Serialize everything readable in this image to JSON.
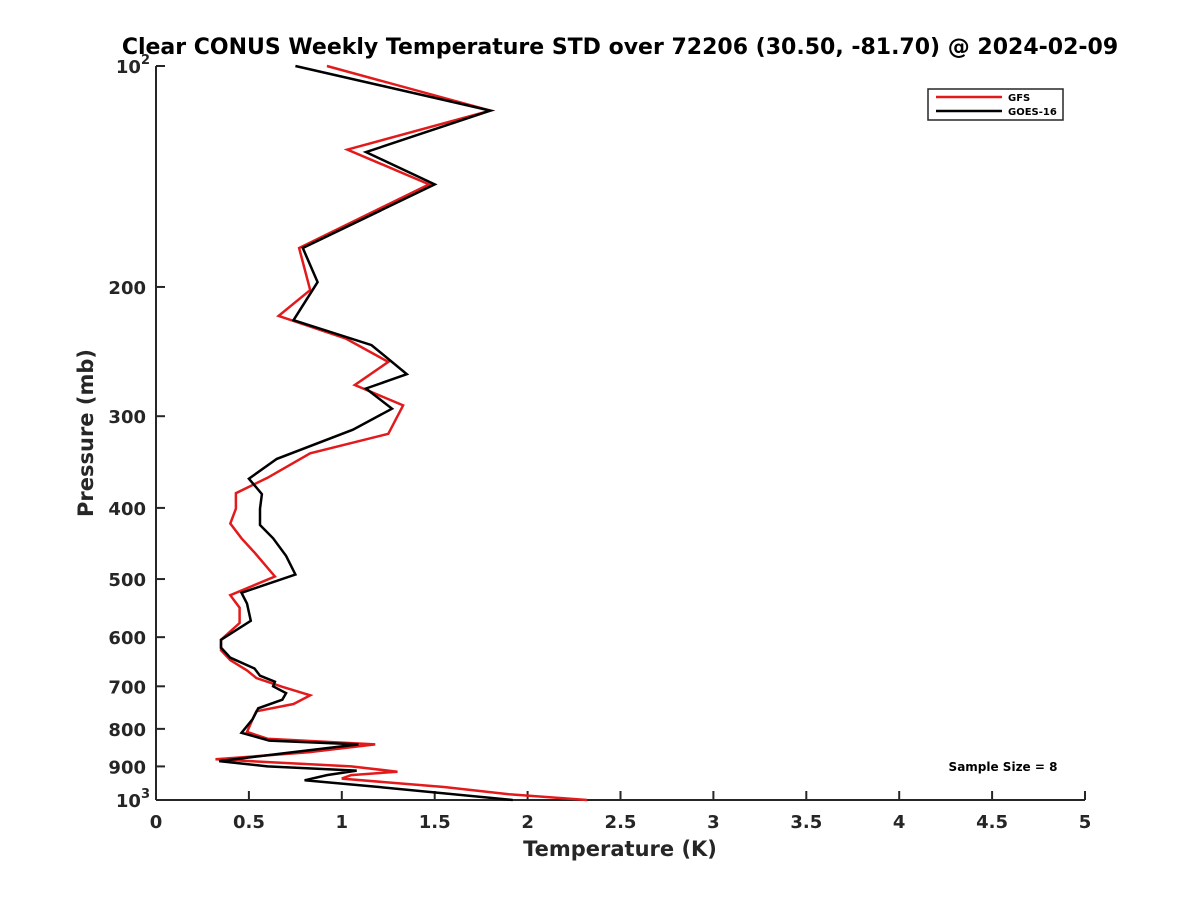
{
  "chart_data": {
    "type": "line",
    "title": "Clear CONUS Weekly Temperature STD over 72206 (30.50, -81.70) @ 2024-02-09",
    "xlabel": "Temperature (K)",
    "ylabel": "Pressure (mb)",
    "xlim": [
      0,
      5
    ],
    "ylim": [
      100,
      1000
    ],
    "y_scale": "log",
    "y_reversed": true,
    "x_ticks": [
      "0",
      "0.5",
      "1",
      "1.5",
      "2",
      "2.5",
      "3",
      "3.5",
      "4",
      "4.5",
      "5"
    ],
    "y_ticks": [
      {
        "value": 100,
        "base": "10",
        "exp": "2"
      },
      {
        "value": 200,
        "label": "200"
      },
      {
        "value": 300,
        "label": "300"
      },
      {
        "value": 400,
        "label": "400"
      },
      {
        "value": 500,
        "label": "500"
      },
      {
        "value": 600,
        "label": "600"
      },
      {
        "value": 700,
        "label": "700"
      },
      {
        "value": 800,
        "label": "800"
      },
      {
        "value": 900,
        "label": "900"
      },
      {
        "value": 1000,
        "base": "10",
        "exp": "3"
      }
    ],
    "grid": false,
    "legend_position": "top-right",
    "series": [
      {
        "name": "GFS",
        "color": "#e31a1c",
        "points": [
          [
            0.92,
            100
          ],
          [
            1.8,
            115
          ],
          [
            1.03,
            130
          ],
          [
            1.47,
            145
          ],
          [
            0.77,
            177
          ],
          [
            0.83,
            202
          ],
          [
            0.66,
            219
          ],
          [
            1.02,
            235
          ],
          [
            1.25,
            253
          ],
          [
            1.07,
            272
          ],
          [
            1.33,
            290
          ],
          [
            1.25,
            317
          ],
          [
            0.83,
            337
          ],
          [
            0.6,
            364
          ],
          [
            0.43,
            382
          ],
          [
            0.43,
            401
          ],
          [
            0.4,
            420
          ],
          [
            0.46,
            440
          ],
          [
            0.53,
            460
          ],
          [
            0.64,
            496
          ],
          [
            0.4,
            526
          ],
          [
            0.45,
            547
          ],
          [
            0.45,
            574
          ],
          [
            0.35,
            605
          ],
          [
            0.35,
            625
          ],
          [
            0.4,
            645
          ],
          [
            0.49,
            666
          ],
          [
            0.54,
            682
          ],
          [
            0.68,
            701
          ],
          [
            0.83,
            720
          ],
          [
            0.74,
            740
          ],
          [
            0.54,
            757
          ],
          [
            0.52,
            776
          ],
          [
            0.49,
            808
          ],
          [
            0.6,
            825
          ],
          [
            1.18,
            840
          ],
          [
            0.82,
            861
          ],
          [
            0.32,
            880
          ],
          [
            1.05,
            900
          ],
          [
            1.3,
            915
          ],
          [
            1.05,
            925
          ],
          [
            1.0,
            935
          ],
          [
            1.22,
            945
          ],
          [
            1.55,
            960
          ],
          [
            1.9,
            982
          ],
          [
            2.32,
            1000
          ]
        ]
      },
      {
        "name": "GOES-16",
        "color": "#000000",
        "points": [
          [
            0.75,
            100
          ],
          [
            1.8,
            115
          ],
          [
            1.13,
            131
          ],
          [
            1.5,
            145
          ],
          [
            0.79,
            177
          ],
          [
            0.87,
            197
          ],
          [
            0.74,
            222
          ],
          [
            1.16,
            240
          ],
          [
            1.35,
            263
          ],
          [
            1.13,
            275
          ],
          [
            1.27,
            293
          ],
          [
            1.06,
            313
          ],
          [
            0.65,
            343
          ],
          [
            0.5,
            365
          ],
          [
            0.57,
            383
          ],
          [
            0.56,
            401
          ],
          [
            0.56,
            422
          ],
          [
            0.63,
            440
          ],
          [
            0.7,
            465
          ],
          [
            0.75,
            493
          ],
          [
            0.46,
            522
          ],
          [
            0.49,
            540
          ],
          [
            0.51,
            570
          ],
          [
            0.35,
            605
          ],
          [
            0.35,
            620
          ],
          [
            0.4,
            640
          ],
          [
            0.53,
            662
          ],
          [
            0.56,
            677
          ],
          [
            0.64,
            690
          ],
          [
            0.63,
            700
          ],
          [
            0.7,
            715
          ],
          [
            0.68,
            730
          ],
          [
            0.55,
            750
          ],
          [
            0.52,
            776
          ],
          [
            0.46,
            810
          ],
          [
            0.61,
            830
          ],
          [
            1.09,
            840
          ],
          [
            0.75,
            860
          ],
          [
            0.34,
            885
          ],
          [
            0.6,
            900
          ],
          [
            1.08,
            912
          ],
          [
            0.92,
            925
          ],
          [
            0.8,
            940
          ],
          [
            1.2,
            960
          ],
          [
            1.92,
            1000
          ]
        ]
      }
    ],
    "annotation": "Sample Size = 8"
  }
}
